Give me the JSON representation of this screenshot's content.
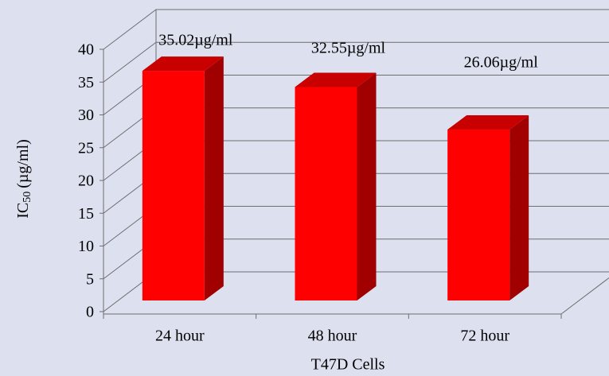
{
  "chart_data": {
    "type": "bar3d",
    "x_label": "T47D Cells",
    "y_label": {
      "main": "IC",
      "subscript": "50",
      "unit": "(µg/ml)"
    },
    "categories": [
      "24 hour",
      "48 hour",
      "72 hour"
    ],
    "values": [
      35.02,
      32.55,
      26.06
    ],
    "value_labels": [
      "35.02µg/ml",
      "32.55µg/ml",
      "26.06µg/ml"
    ],
    "color": "#ff0000",
    "ylim": [
      0,
      40
    ],
    "yticks": [
      0,
      5,
      10,
      15,
      20,
      25,
      30,
      35,
      40
    ],
    "grid": true
  }
}
